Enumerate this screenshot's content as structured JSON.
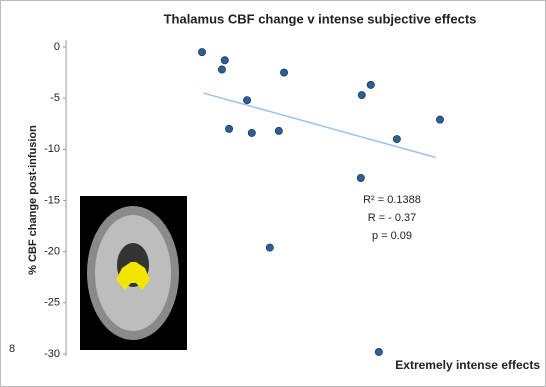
{
  "chart_data": {
    "type": "scatter",
    "title": "Thalamus CBF change v intense subjective effects",
    "y_label": "% CBF change post-infusion",
    "x_label": "Extremely intense effects",
    "series": [
      {
        "color": "#2e5f93",
        "x": [
          2.87,
          3.35,
          3.29,
          4.6,
          3.82,
          3.44,
          3.92,
          4.49,
          6.24,
          6.43,
          6.98,
          7.89,
          6.22,
          4.3,
          6.6
        ],
        "values": [
          -0.5,
          -1.3,
          -2.2,
          -2.5,
          -5.2,
          -8.0,
          -8.4,
          -8.2,
          -4.7,
          -3.7,
          -9.0,
          -7.1,
          -12.8,
          -19.6,
          -29.8
        ]
      }
    ],
    "trendline": {
      "color": "#9dc3e6",
      "x": [
        2.9,
        7.8
      ],
      "values": [
        -4.5,
        -10.8
      ]
    },
    "annotations": [
      "R² = 0.1388",
      "R = - 0.37",
      "p = 0.09"
    ],
    "side_label": "8",
    "xlim": [
      0,
      10
    ],
    "ylim": [
      -30,
      0
    ],
    "yticks": [
      0,
      -5,
      -10,
      -15,
      -20,
      -25,
      -30
    ]
  }
}
